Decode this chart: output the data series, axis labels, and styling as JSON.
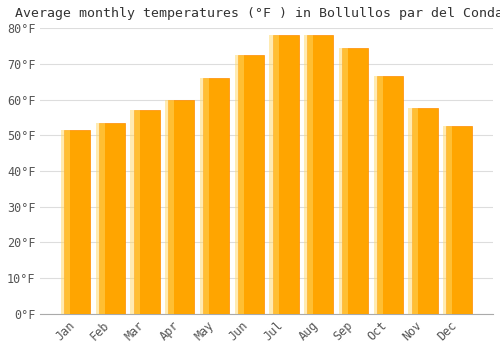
{
  "title": "Average monthly temperatures (°F ) in Bollullos par del Condado",
  "months": [
    "Jan",
    "Feb",
    "Mar",
    "Apr",
    "May",
    "Jun",
    "Jul",
    "Aug",
    "Sep",
    "Oct",
    "Nov",
    "Dec"
  ],
  "values": [
    51.5,
    53.5,
    57.0,
    60.0,
    66.0,
    72.5,
    78.0,
    78.0,
    74.5,
    66.5,
    57.5,
    52.5
  ],
  "bar_color": "#FFA500",
  "bar_edge_color": "#FF8C00",
  "background_color": "#FFFFFF",
  "plot_bg_color": "#FFFFFF",
  "grid_color": "#DDDDDD",
  "ylim": [
    0,
    80
  ],
  "yticks": [
    0,
    10,
    20,
    30,
    40,
    50,
    60,
    70,
    80
  ],
  "title_fontsize": 9.5,
  "tick_fontsize": 8.5,
  "title_color": "#333333",
  "tick_color": "#555555"
}
